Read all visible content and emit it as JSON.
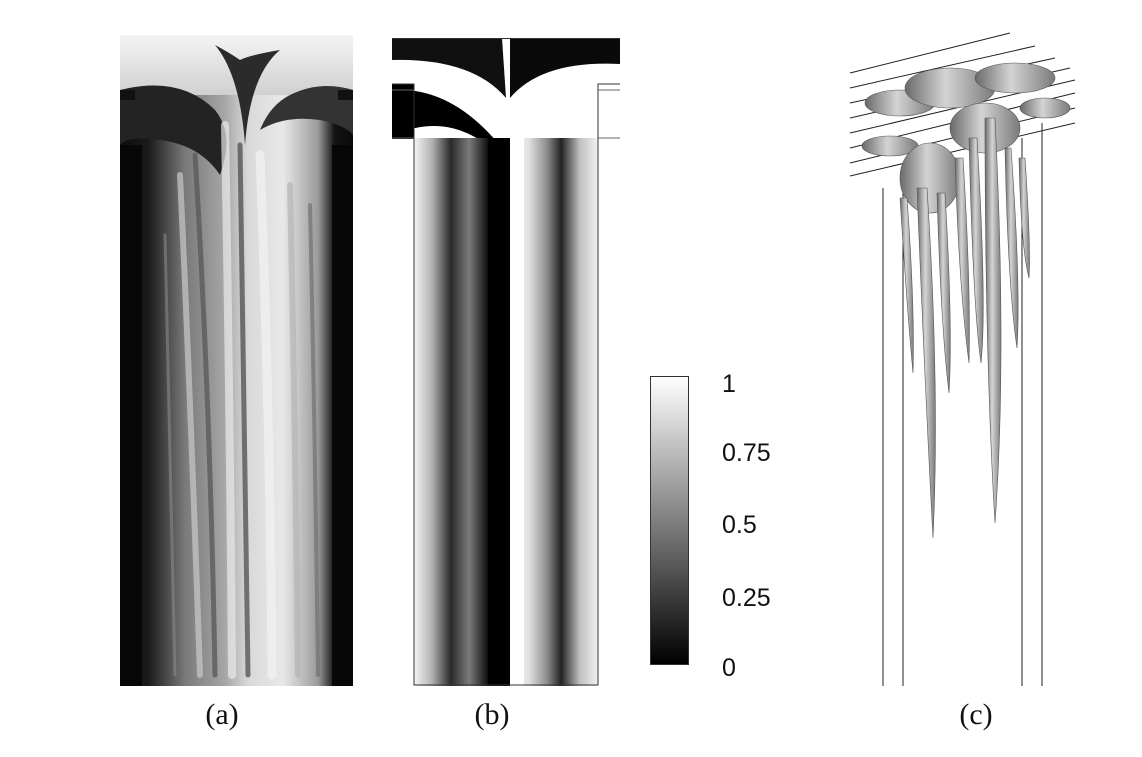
{
  "panels": [
    {
      "caption": "(a)"
    },
    {
      "caption": "(b)"
    },
    {
      "caption": "(c)"
    }
  ],
  "colorbar": {
    "ticks": [
      "1",
      "0.75",
      "0.5",
      "0.25",
      "0"
    ],
    "min": 0,
    "max": 1,
    "colormap": "grayscale",
    "low_color": "#000000",
    "high_color": "#ffffff"
  }
}
